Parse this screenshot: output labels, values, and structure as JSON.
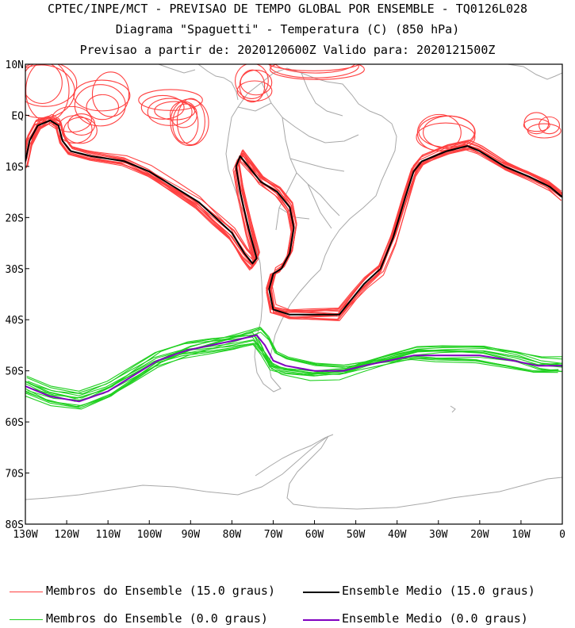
{
  "title": {
    "line1": "CPTEC/INPE/MCT - PREVISAO DE TEMPO GLOBAL POR ENSEMBLE - TQ0126L028",
    "line2": "Diagrama \"Spaguetti\" - Temperatura (C) (850 hPa)",
    "line3": "Previsao a partir de: 2020120600Z  Valido para: 2020121500Z"
  },
  "axes": {
    "lat_labels": [
      "10N",
      "EQ",
      "10S",
      "20S",
      "30S",
      "40S",
      "50S",
      "60S",
      "70S",
      "80S"
    ],
    "lon_labels": [
      "130W",
      "120W",
      "110W",
      "100W",
      "90W",
      "80W",
      "70W",
      "60W",
      "50W",
      "40W",
      "30W",
      "20W",
      "10W",
      "0"
    ],
    "lat_range": [
      -80,
      10
    ],
    "lon_range": [
      -130,
      0
    ]
  },
  "legend": [
    {
      "label": "Membros do Ensemble (15.0 graus)",
      "color": "#ff4040"
    },
    {
      "label": "Ensemble Medio (15.0 graus)",
      "color": "#000000"
    },
    {
      "label": "Membros do Ensemble (0.0 graus)",
      "color": "#20d020"
    },
    {
      "label": "Ensemble Medio (0.0 graus)",
      "color": "#8000c0"
    }
  ],
  "colors": {
    "coastline": "#a8a8a8",
    "members_15": "#ff4040",
    "mean_15": "#000000",
    "members_0": "#20d020",
    "mean_0": "#8000c0"
  },
  "isolines": {
    "mean_15": [
      [
        -130,
        -9
      ],
      [
        -129,
        -5
      ],
      [
        -127,
        -2
      ],
      [
        -124,
        -1
      ],
      [
        -122,
        -2
      ],
      [
        -121,
        -5
      ],
      [
        -119,
        -7
      ],
      [
        -114,
        -8
      ],
      [
        -106,
        -9
      ],
      [
        -100,
        -11
      ],
      [
        -94,
        -14
      ],
      [
        -88,
        -17
      ],
      [
        -84,
        -20
      ],
      [
        -80,
        -23
      ],
      [
        -77,
        -27
      ],
      [
        -75,
        -29
      ],
      [
        -74,
        -28
      ],
      [
        -76,
        -22
      ],
      [
        -78,
        -15
      ],
      [
        -79,
        -10
      ],
      [
        -78,
        -8
      ],
      [
        -76,
        -10
      ],
      [
        -73,
        -13
      ],
      [
        -69,
        -15
      ],
      [
        -66,
        -18
      ],
      [
        -65,
        -22
      ],
      [
        -66,
        -27
      ],
      [
        -68,
        -30
      ],
      [
        -70,
        -31
      ],
      [
        -71,
        -34
      ],
      [
        -70,
        -38
      ],
      [
        -66,
        -39
      ],
      [
        -60,
        -39
      ],
      [
        -54,
        -39
      ],
      [
        -51,
        -36
      ],
      [
        -48,
        -33
      ],
      [
        -44,
        -30
      ],
      [
        -41,
        -24
      ],
      [
        -38,
        -16
      ],
      [
        -36,
        -11
      ],
      [
        -34,
        -9
      ],
      [
        -28,
        -7
      ],
      [
        -23,
        -6
      ],
      [
        -20,
        -7
      ],
      [
        -14,
        -10
      ],
      [
        -8,
        -12
      ],
      [
        -3,
        -14
      ],
      [
        0,
        -16
      ]
    ],
    "mean_0": [
      [
        -130,
        -53
      ],
      [
        -124,
        -55
      ],
      [
        -117,
        -56
      ],
      [
        -110,
        -54
      ],
      [
        -104,
        -51
      ],
      [
        -98,
        -48
      ],
      [
        -91,
        -46
      ],
      [
        -85,
        -45
      ],
      [
        -79,
        -44
      ],
      [
        -74,
        -43
      ],
      [
        -72,
        -45
      ],
      [
        -70,
        -48
      ],
      [
        -67,
        -49
      ],
      [
        -60,
        -50
      ],
      [
        -53,
        -50
      ],
      [
        -48,
        -49
      ],
      [
        -42,
        -48
      ],
      [
        -36,
        -47
      ],
      [
        -30,
        -47
      ],
      [
        -20,
        -47
      ],
      [
        -12,
        -48
      ],
      [
        -6,
        -49
      ],
      [
        0,
        -49
      ]
    ]
  }
}
